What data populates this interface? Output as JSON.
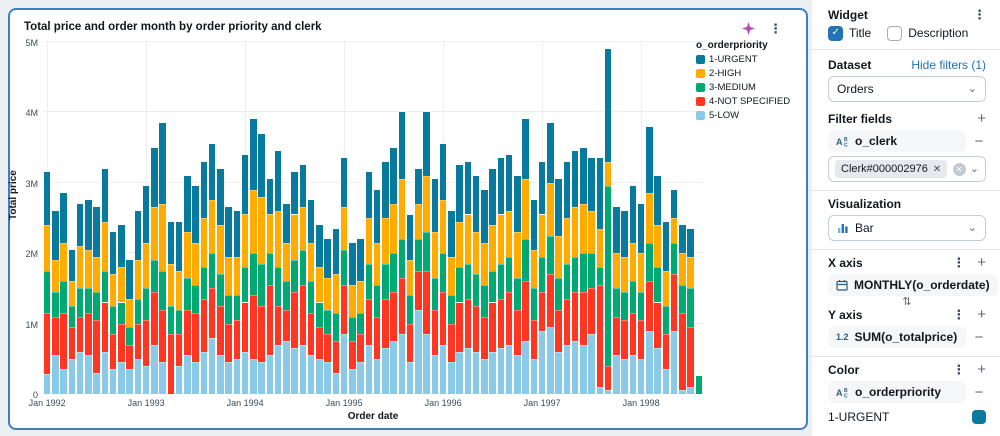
{
  "chart": {
    "title": "Total price and order month by order priority and clerk"
  },
  "chart_data": {
    "type": "bar",
    "stacked": true,
    "title": "Total price and order month by order priority and clerk",
    "xlabel": "Order date",
    "ylabel": "Total price",
    "ylim": [
      0,
      5000000
    ],
    "grid": true,
    "ytick_labels": [
      "0",
      "1M",
      "2M",
      "3M",
      "4M",
      "5M"
    ],
    "xtick_labels": [
      "Jan 1992",
      "Jan 1993",
      "Jan 1994",
      "Jan 1995",
      "Jan 1996",
      "Jan 1997",
      "Jan 1998"
    ],
    "xtick_month_indexes": [
      0,
      12,
      24,
      36,
      48,
      60,
      72
    ],
    "x_start": "1992-01",
    "x_end": "1998-08",
    "granularity": "month",
    "legend_title": "o_orderpriority",
    "legend_position": "right",
    "series_names": [
      "1-URGENT",
      "2-HIGH",
      "3-MEDIUM",
      "4-NOT SPECIFIED",
      "5-LOW"
    ],
    "series_colors": [
      "#077A9D",
      "#FFAB00",
      "#00A972",
      "#FF3621",
      "#8BCAE7"
    ],
    "stack_order_bottom_to_top": [
      "5-LOW",
      "4-NOT SPECIFIED",
      "3-MEDIUM",
      "2-HIGH",
      "1-URGENT"
    ],
    "stack_colors_bottom_to_top": [
      "#8BCAE7",
      "#FF3621",
      "#00A972",
      "#FFAB00",
      "#077A9D"
    ],
    "units": "millions",
    "bars": [
      [
        0.28,
        0.87,
        0.6,
        0.65,
        0.75
      ],
      [
        0.55,
        0.55,
        0.35,
        0.45,
        0.7
      ],
      [
        0.35,
        0.8,
        0.45,
        0.55,
        0.7
      ],
      [
        0.5,
        0.45,
        0.3,
        0.35,
        0.45
      ],
      [
        0.6,
        0.5,
        0.4,
        0.6,
        0.6
      ],
      [
        0.55,
        0.6,
        0.35,
        0.55,
        0.7
      ],
      [
        0.3,
        0.75,
        0.4,
        0.5,
        0.7
      ],
      [
        0.6,
        0.7,
        0.45,
        0.7,
        0.75
      ],
      [
        0.35,
        0.5,
        0.4,
        0.45,
        0.6
      ],
      [
        0.45,
        0.55,
        0.3,
        0.5,
        0.6
      ],
      [
        0.35,
        0.35,
        0.25,
        0.4,
        0.55
      ],
      [
        0.5,
        0.5,
        0.35,
        0.55,
        0.7
      ],
      [
        0.4,
        0.65,
        0.45,
        0.65,
        0.8
      ],
      [
        0.7,
        0.75,
        0.45,
        0.75,
        0.85
      ],
      [
        0.45,
        0.75,
        0.55,
        0.95,
        1.15
      ],
      [
        0.0,
        0.85,
        0.4,
        0.6,
        0.6
      ],
      [
        0.4,
        0.45,
        0.35,
        0.55,
        0.7
      ],
      [
        0.55,
        0.65,
        0.45,
        0.65,
        0.8
      ],
      [
        0.45,
        0.7,
        0.4,
        0.6,
        0.8
      ],
      [
        0.6,
        0.75,
        0.45,
        0.7,
        0.8
      ],
      [
        0.8,
        0.7,
        0.5,
        0.75,
        0.8
      ],
      [
        0.55,
        0.7,
        0.45,
        0.7,
        0.8
      ],
      [
        0.45,
        0.55,
        0.4,
        0.55,
        0.7
      ],
      [
        0.5,
        0.55,
        0.35,
        0.55,
        0.65
      ],
      [
        0.6,
        0.7,
        0.5,
        0.75,
        0.85
      ],
      [
        0.5,
        0.9,
        0.6,
        0.9,
        1.0
      ],
      [
        0.45,
        0.8,
        0.6,
        0.95,
        0.9
      ],
      [
        0.55,
        1.0,
        0.45,
        0.55,
        0.5
      ],
      [
        0.7,
        0.55,
        0.55,
        0.8,
        0.85
      ],
      [
        0.75,
        0.45,
        0.4,
        0.55,
        0.55
      ],
      [
        0.65,
        0.8,
        0.45,
        0.65,
        0.6
      ],
      [
        0.7,
        0.85,
        0.5,
        0.6,
        0.6
      ],
      [
        0.55,
        0.6,
        0.45,
        0.55,
        0.6
      ],
      [
        0.5,
        0.45,
        0.35,
        0.5,
        0.6
      ],
      [
        0.45,
        0.4,
        0.35,
        0.45,
        0.55
      ],
      [
        0.3,
        0.45,
        0.4,
        0.55,
        0.65
      ],
      [
        0.85,
        0.7,
        0.5,
        0.6,
        0.7
      ],
      [
        0.35,
        0.4,
        0.35,
        0.45,
        0.6
      ],
      [
        0.45,
        0.4,
        0.3,
        0.45,
        0.6
      ],
      [
        0.7,
        0.65,
        0.5,
        0.65,
        0.65
      ],
      [
        0.5,
        0.6,
        0.45,
        0.6,
        0.75
      ],
      [
        0.65,
        0.7,
        0.5,
        0.65,
        0.8
      ],
      [
        0.75,
        0.7,
        0.55,
        0.7,
        0.8
      ],
      [
        0.85,
        0.8,
        0.55,
        0.85,
        0.95
      ],
      [
        0.45,
        0.55,
        0.4,
        0.5,
        0.65
      ],
      [
        1.2,
        0.55,
        0.45,
        0.5,
        0.5
      ],
      [
        0.85,
        0.9,
        0.55,
        0.8,
        0.9
      ],
      [
        0.55,
        0.65,
        0.45,
        0.65,
        0.75
      ],
      [
        0.7,
        0.75,
        0.55,
        0.75,
        0.8
      ],
      [
        0.45,
        0.55,
        0.4,
        0.55,
        0.65
      ],
      [
        0.6,
        0.7,
        0.5,
        0.65,
        0.8
      ],
      [
        0.65,
        0.7,
        0.5,
        0.7,
        0.75
      ],
      [
        0.6,
        0.65,
        0.45,
        0.6,
        0.8
      ],
      [
        0.5,
        0.6,
        0.45,
        0.6,
        0.75
      ],
      [
        0.6,
        0.7,
        0.45,
        0.65,
        0.8
      ],
      [
        0.65,
        0.7,
        0.5,
        0.7,
        0.8
      ],
      [
        0.7,
        0.75,
        0.5,
        0.65,
        0.8
      ],
      [
        0.55,
        0.65,
        0.45,
        0.65,
        0.8
      ],
      [
        0.75,
        0.85,
        0.6,
        0.85,
        0.85
      ],
      [
        0.5,
        0.55,
        0.45,
        0.55,
        0.7
      ],
      [
        0.9,
        0.55,
        0.5,
        0.6,
        0.75
      ],
      [
        0.95,
        0.75,
        0.55,
        0.75,
        0.85
      ],
      [
        0.6,
        0.6,
        0.45,
        0.6,
        0.8
      ],
      [
        0.7,
        0.65,
        0.5,
        0.65,
        0.8
      ],
      [
        0.75,
        0.7,
        0.5,
        0.7,
        0.8
      ],
      [
        0.7,
        0.75,
        0.55,
        0.7,
        0.8
      ],
      [
        0.85,
        0.65,
        0.5,
        0.6,
        0.75
      ],
      [
        0.1,
        1.45,
        0.25,
        0.55,
        1.0
      ],
      [
        0.05,
        0.35,
        2.55,
        0.35,
        1.6
      ],
      [
        0.55,
        0.55,
        0.4,
        0.5,
        0.65
      ],
      [
        0.5,
        0.55,
        0.4,
        0.5,
        0.65
      ],
      [
        0.55,
        0.6,
        0.45,
        0.55,
        0.8
      ],
      [
        0.5,
        0.55,
        0.4,
        0.55,
        0.7
      ],
      [
        0.9,
        0.7,
        0.55,
        0.7,
        0.95
      ],
      [
        0.65,
        0.65,
        0.5,
        0.6,
        0.7
      ],
      [
        0.35,
        0.5,
        0.4,
        0.5,
        0.7
      ],
      [
        0.9,
        0.8,
        0.45,
        0.35,
        0.4
      ],
      [
        0.05,
        1.1,
        0.4,
        0.45,
        0.4
      ],
      [
        0.1,
        0.85,
        0.55,
        0.45,
        0.4
      ],
      [
        0.0,
        0.0,
        0.25,
        0.0,
        0.0
      ]
    ]
  },
  "widget_panel": {
    "title": "Widget",
    "title_checkbox": "Title",
    "description_checkbox": "Description",
    "dataset_label": "Dataset",
    "hide_filters_link": "Hide filters (1)",
    "dataset_value": "Orders",
    "filter_fields_label": "Filter fields",
    "filter_field_name": "o_clerk",
    "filter_chip": "Clerk#000002976",
    "visualization_label": "Visualization",
    "visualization_value": "Bar",
    "x_axis_label": "X axis",
    "x_axis_field": "MONTHLY(o_orderdate)",
    "y_axis_label": "Y axis",
    "y_axis_type_icon": "1.2",
    "y_axis_field": "SUM(o_totalprice)",
    "color_label": "Color",
    "color_field": "o_orderpriority",
    "color_item_label": "1-URGENT",
    "color_item_hex": "#077A9D",
    "accent_blue": "#2272B4"
  }
}
